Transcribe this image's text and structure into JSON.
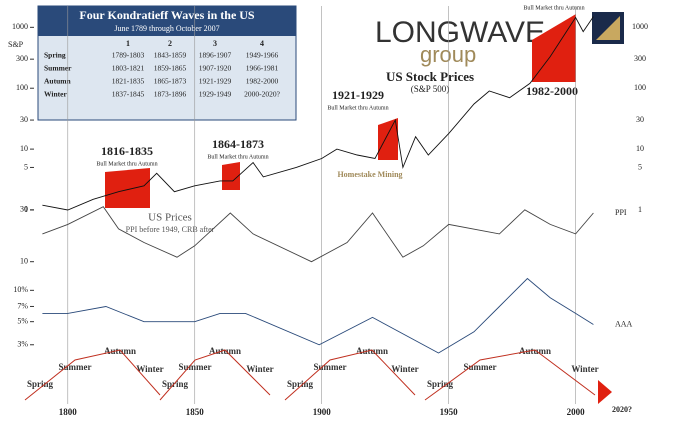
{
  "table": {
    "title": "Four Kondratieff Waves in the US",
    "subtitle": "June 1789 through October 2007",
    "columns": [
      "1",
      "2",
      "3",
      "4"
    ],
    "rows": [
      [
        "Spring",
        "1789-1803",
        "1843-1859",
        "1896-1907",
        "1949-1966"
      ],
      [
        "Summer",
        "1803-1821",
        "1859-1865",
        "1907-1920",
        "1966-1981"
      ],
      [
        "Autumn",
        "1821-1835",
        "1865-1873",
        "1921-1929",
        "1982-2000"
      ],
      [
        "Winter",
        "1837-1845",
        "1873-1896",
        "1929-1949",
        "2000-2020?"
      ]
    ]
  },
  "logo": {
    "name": "LONGWAVE",
    "sub": "group"
  },
  "annotations": {
    "peaks": [
      "1816-1835",
      "1864-1873",
      "1921-1929",
      "1982-2000"
    ],
    "bull": "Bull Market thru Autumn",
    "prices": "US Prices",
    "prices_note": "PPI before 1949, CRB after",
    "mining": "Homestake Mining",
    "seasons": [
      "Spring",
      "Summer",
      "Autumn",
      "Winter"
    ],
    "future": "2020?"
  },
  "chart_data": [
    {
      "type": "line",
      "title": "US Stock Prices",
      "subtitle": "(S&P 500)",
      "log": true,
      "xlim": [
        1780,
        2010
      ],
      "xticks": [
        1800,
        1850,
        1900,
        1950,
        2000
      ],
      "ylim": [
        1,
        2000
      ],
      "yticks": [
        1,
        5,
        10,
        30,
        100,
        300,
        1000
      ],
      "x": [
        1790,
        1800,
        1810,
        1820,
        1830,
        1835,
        1842,
        1850,
        1860,
        1865,
        1873,
        1877,
        1890,
        1900,
        1906,
        1914,
        1921,
        1929,
        1932,
        1937,
        1942,
        1950,
        1960,
        1966,
        1974,
        1982,
        1990,
        2000,
        2003,
        2007
      ],
      "series": [
        {
          "name": "S&P",
          "color": "#111111",
          "values": [
            1.2,
            1.0,
            1.5,
            2.0,
            2.5,
            4,
            2,
            2.5,
            3,
            3,
            6,
            3.5,
            5,
            7,
            10,
            8,
            7,
            30,
            5,
            16,
            8,
            18,
            55,
            90,
            70,
            120,
            330,
            1450,
            850,
            1500
          ]
        }
      ]
    },
    {
      "type": "line",
      "log": true,
      "xlim": [
        1780,
        2010
      ],
      "ylim": [
        4,
        60
      ],
      "yticks": [
        10,
        30
      ],
      "x": [
        1790,
        1800,
        1814,
        1820,
        1830,
        1843,
        1850,
        1864,
        1873,
        1896,
        1910,
        1920,
        1932,
        1940,
        1950,
        1970,
        1980,
        1990,
        2000,
        2007
      ],
      "series": [
        {
          "name": "PPI",
          "color": "#444444",
          "values": [
            18,
            22,
            32,
            20,
            15,
            11,
            14,
            28,
            18,
            10,
            15,
            28,
            11,
            14,
            22,
            18,
            30,
            22,
            18,
            28
          ]
        }
      ]
    },
    {
      "type": "line",
      "log": true,
      "xlim": [
        1780,
        2010
      ],
      "ylim": [
        2.5,
        15
      ],
      "yticks": [
        {
          "value": 3,
          "label": "3%"
        },
        {
          "value": 5,
          "label": "5%"
        },
        {
          "value": 7,
          "label": "7%"
        },
        {
          "value": 10,
          "label": "10%"
        }
      ],
      "x": [
        1790,
        1800,
        1815,
        1830,
        1850,
        1860,
        1870,
        1899,
        1920,
        1946,
        1960,
        1970,
        1981,
        1990,
        2000,
        2007
      ],
      "series": [
        {
          "name": "AAA",
          "color": "#2a4a7a",
          "values": [
            6,
            6,
            7,
            5,
            5,
            6,
            6,
            3,
            5.5,
            2.5,
            4,
            7,
            13,
            8.5,
            6,
            4.7
          ]
        }
      ]
    }
  ]
}
